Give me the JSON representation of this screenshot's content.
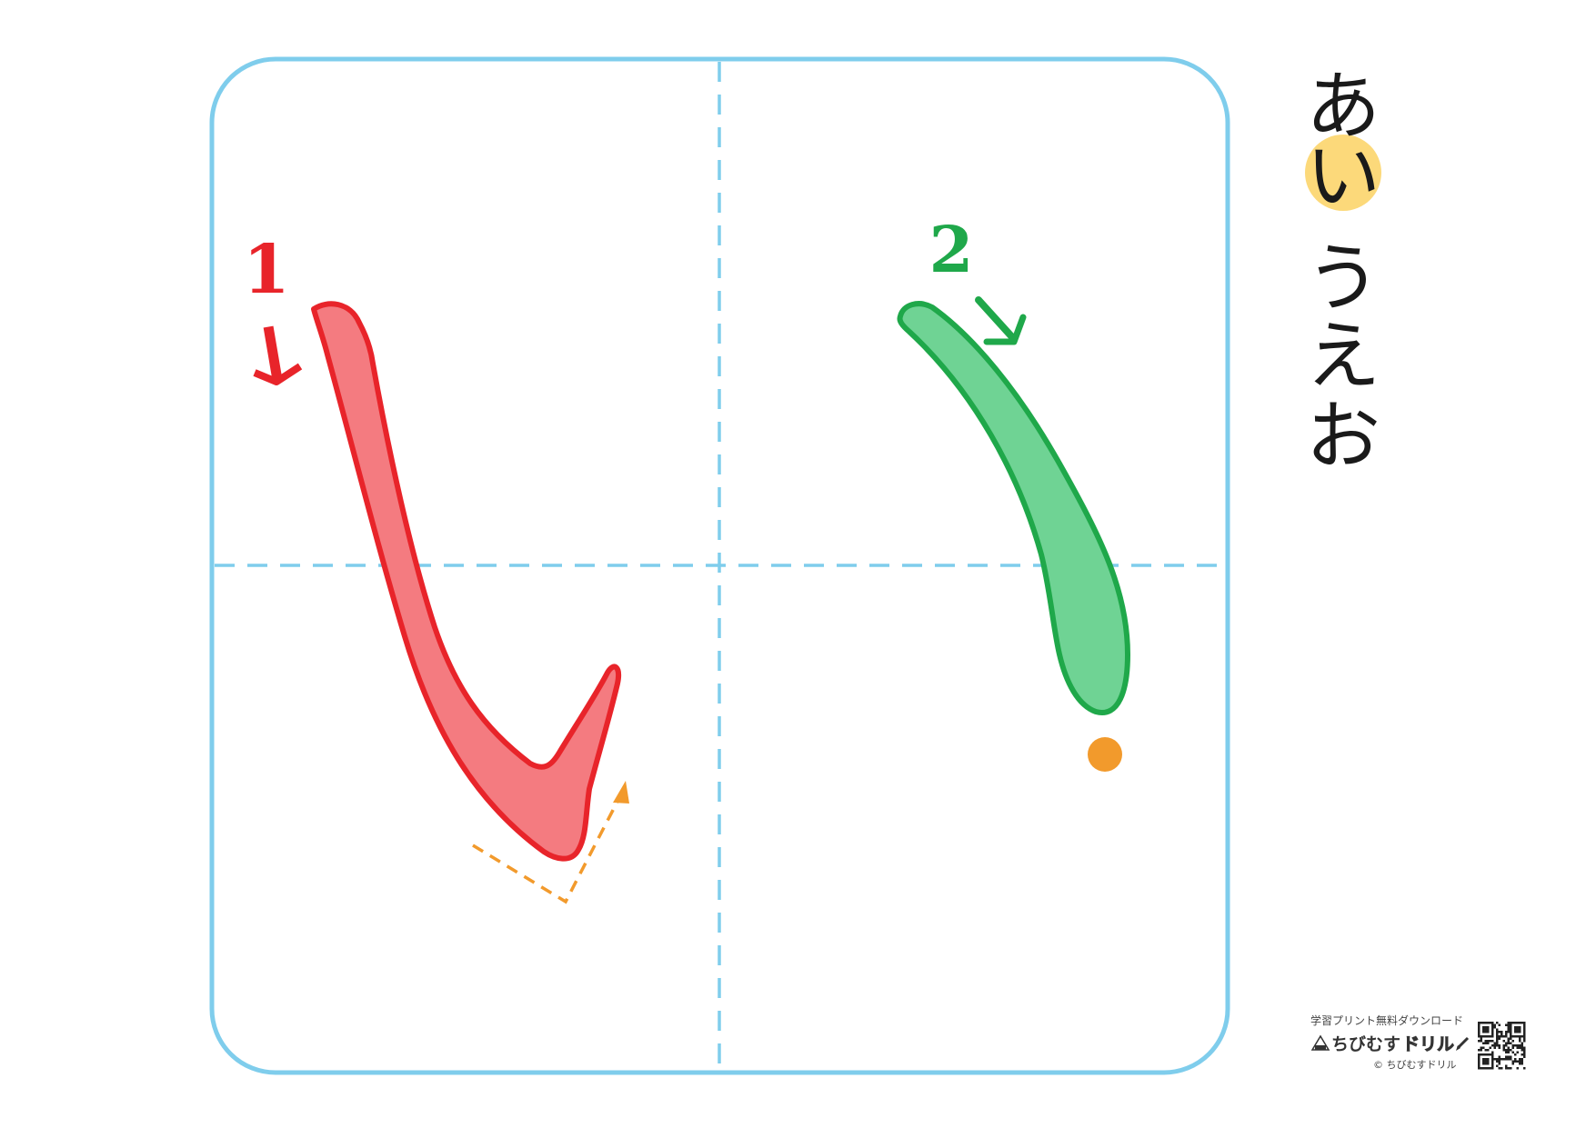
{
  "character": "い",
  "strokes": [
    {
      "number": "1",
      "color": "#e8242a",
      "fill": "#f47b80"
    },
    {
      "number": "2",
      "color": "#1fa84a",
      "fill": "#6fd394"
    }
  ],
  "kana_row": {
    "items": [
      "あ",
      "い",
      "う",
      "え",
      "お"
    ],
    "highlight_index": 1,
    "highlight_color": "#fcd97a"
  },
  "guide_colors": {
    "frame": "#7fcdec",
    "dashed": "#7fcdec",
    "hint_arrow": "#f29a2c",
    "end_dot": "#f29a2c"
  },
  "footer": {
    "tagline": "学習プリント無料ダウンロード",
    "brand_prefix": "ちびむす",
    "brand_suffix": "ドリル",
    "copyright": "© ちびむすドリル"
  }
}
